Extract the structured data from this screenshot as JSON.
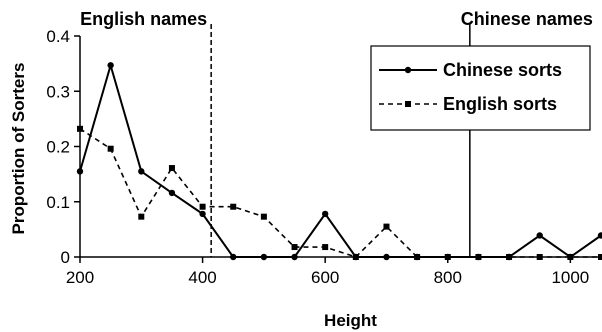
{
  "chart_data": {
    "type": "line",
    "xlabel": "Height",
    "ylabel": "Proportion of Sorters",
    "xlim": [
      200,
      1050
    ],
    "ylim": [
      0,
      0.4
    ],
    "x_ticks": [
      200,
      400,
      600,
      800,
      1000
    ],
    "x_tick_labels": [
      "200",
      "400",
      "600",
      "800",
      "1000"
    ],
    "y_ticks": [
      0,
      0.1,
      0.2,
      0.3,
      0.4
    ],
    "y_tick_labels": [
      "0",
      "0.1",
      "0.2",
      "0.3",
      "0.4"
    ],
    "grid": false,
    "legend_position": "top-right",
    "annotations": [
      {
        "text": "English names",
        "x": 414
      },
      {
        "text": "Chinese names",
        "x": 836
      }
    ],
    "series": [
      {
        "name": "Chinese sorts",
        "color": "#000000",
        "line_style": "solid",
        "marker": "circle",
        "x": [
          200,
          250,
          300,
          350,
          400,
          450,
          500,
          550,
          600,
          650,
          700,
          750,
          800,
          850,
          900,
          950,
          1000,
          1050
        ],
        "values": [
          0.155,
          0.347,
          0.155,
          0.116,
          0.078,
          0,
          0,
          0,
          0.078,
          0,
          0,
          0,
          0,
          0,
          0,
          0.039,
          0,
          0.039
        ]
      },
      {
        "name": "English sorts",
        "color": "#000000",
        "line_style": "dashed",
        "marker": "square",
        "x": [
          200,
          250,
          300,
          350,
          400,
          450,
          500,
          550,
          600,
          650,
          700,
          750,
          800,
          850,
          900,
          950,
          1000,
          1050
        ],
        "values": [
          0.232,
          0.196,
          0.073,
          0.161,
          0.091,
          0.091,
          0.073,
          0.018,
          0.018,
          0,
          0.055,
          0,
          0,
          0,
          0,
          0,
          0,
          0
        ]
      }
    ]
  }
}
